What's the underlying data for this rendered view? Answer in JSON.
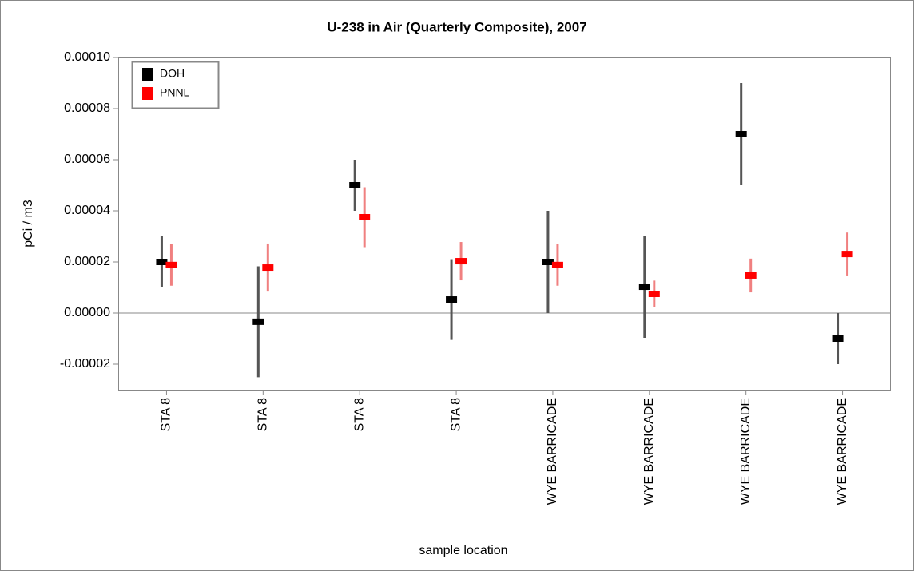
{
  "chart_data": {
    "type": "errorbar",
    "title": "U-238 in Air (Quarterly Composite), 2007",
    "x_label": "sample location",
    "y_label": "pCi / m3",
    "categories": [
      "STA 8",
      "STA 8",
      "STA 8",
      "STA 8",
      "WYE BARRICADE",
      "WYE BARRICADE",
      "WYE BARRICADE",
      "WYE BARRICADE"
    ],
    "series": [
      {
        "name": "DOH",
        "color": "#000000",
        "error_color": "#555555",
        "values": [
          2e-05,
          -3.4e-06,
          5e-05,
          5.3e-06,
          2e-05,
          1.03e-05,
          7e-05,
          -1e-05
        ],
        "errors": [
          1e-05,
          2.17e-05,
          1e-05,
          1.58e-05,
          2e-05,
          2e-05,
          2e-05,
          1e-05
        ]
      },
      {
        "name": "PNNL",
        "color": "#ff0000",
        "error_color": "#f08080",
        "values": [
          1.88e-05,
          1.78e-05,
          3.75e-05,
          2.03e-05,
          1.88e-05,
          7.5e-06,
          1.47e-05,
          2.31e-05
        ],
        "errors": [
          8.1e-06,
          9.4e-06,
          1.17e-05,
          7.5e-06,
          8.1e-06,
          5.2e-06,
          6.6e-06,
          8.4e-06
        ]
      }
    ],
    "ylim": [
      -3e-05,
      0.0001
    ],
    "yticks": [
      {
        "value": -2e-05,
        "label": "-0.00002"
      },
      {
        "value": 0,
        "label": "0.00000"
      },
      2e-05,
      4e-05,
      6e-05,
      8e-05,
      {
        "value": 0.0001,
        "label": "0.00010"
      }
    ],
    "legend": "upper-left"
  }
}
